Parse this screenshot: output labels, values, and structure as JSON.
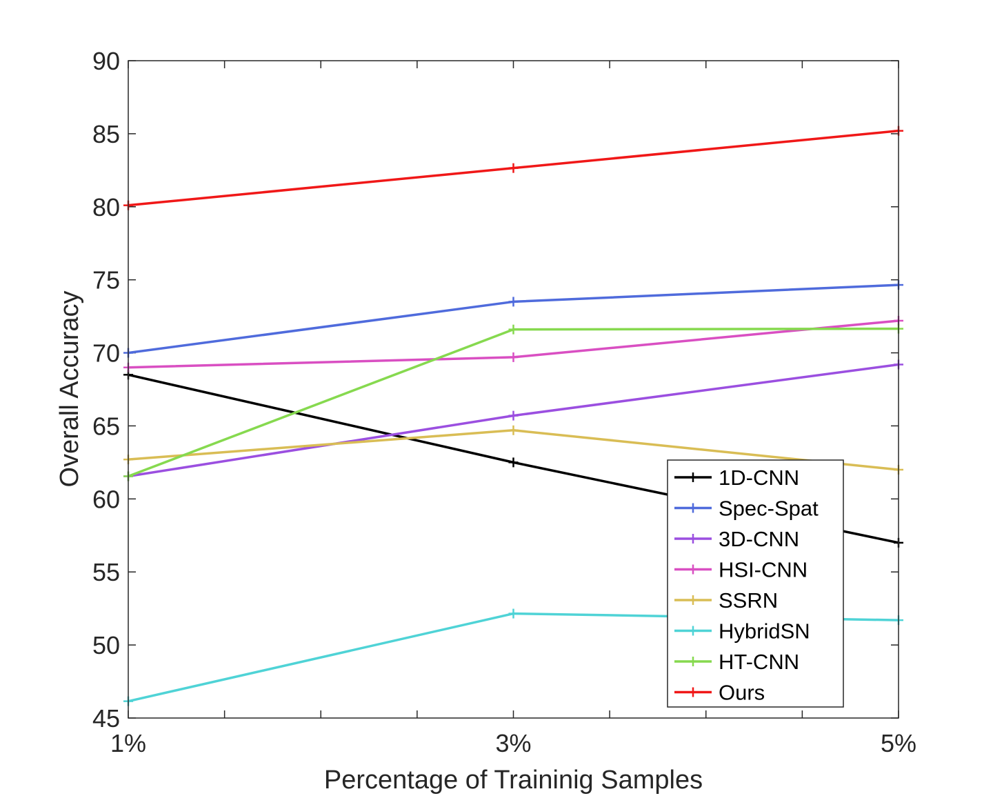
{
  "chart_data": {
    "type": "line",
    "title": "",
    "xlabel": "Percentage of Traininig Samples",
    "ylabel": "Overall Accuracy",
    "x": [
      1,
      3,
      5
    ],
    "x_tick_labels": [
      "1%",
      "3%",
      "5%"
    ],
    "xlim": [
      1,
      5
    ],
    "ylim": [
      45,
      90
    ],
    "y_ticks": [
      45,
      50,
      55,
      60,
      65,
      70,
      75,
      80,
      85,
      90
    ],
    "grid": false,
    "legend_position": "bottom-right",
    "series": [
      {
        "name": "1D-CNN",
        "color": "#000000",
        "values": [
          68.5,
          62.5,
          57.0
        ]
      },
      {
        "name": "Spec-Spat",
        "color": "#4f6bdc",
        "values": [
          70.0,
          73.5,
          74.65
        ]
      },
      {
        "name": "3D-CNN",
        "color": "#9b4fe0",
        "values": [
          61.55,
          65.7,
          69.2
        ]
      },
      {
        "name": "HSI-CNN",
        "color": "#d94fc2",
        "values": [
          69.0,
          69.7,
          72.2
        ]
      },
      {
        "name": "SSRN",
        "color": "#d9bd55",
        "values": [
          62.7,
          64.7,
          62.0
        ]
      },
      {
        "name": "HybridSN",
        "color": "#4fd3d6",
        "values": [
          46.15,
          52.15,
          51.7
        ]
      },
      {
        "name": "HT-CNN",
        "color": "#86d94f",
        "values": [
          61.55,
          71.6,
          71.65
        ]
      },
      {
        "name": "Ours",
        "color": "#f01818",
        "values": [
          80.1,
          82.65,
          85.2
        ]
      }
    ]
  }
}
